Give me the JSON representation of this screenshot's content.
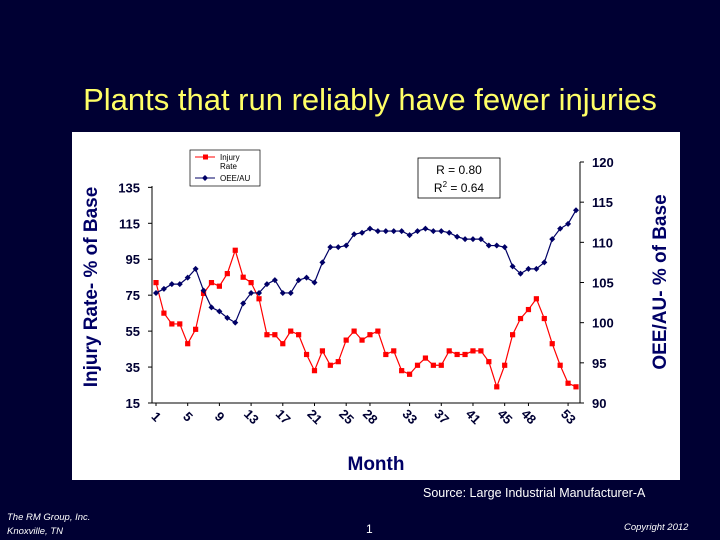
{
  "slide": {
    "title": "Plants that run reliably have fewer injuries",
    "source": "Source: Large Industrial Manufacturer-A",
    "footer_company": "The RM Group, Inc.",
    "footer_location": "Knoxville, TN",
    "page_number": "1",
    "copyright": "Copyright 2012"
  },
  "colors": {
    "background": "#000033",
    "title": "#ffff66",
    "injury_series": "#ff0000",
    "oee_series": "#000066"
  },
  "chart_data": {
    "type": "line",
    "xlabel": "Month",
    "ylabel_left": "Injury Rate- % of Base",
    "ylabel_right": "OEE/AU- % of Base",
    "x_tick_labels": [
      "1",
      "5",
      "9",
      "13",
      "17",
      "21",
      "25",
      "28",
      "33",
      "37",
      "41",
      "45",
      "48",
      "53"
    ],
    "y_left_ticks": [
      15,
      35,
      55,
      75,
      95,
      115,
      135
    ],
    "y_left_range": [
      15,
      148
    ],
    "y_right_ticks": [
      90,
      95,
      100,
      105,
      110,
      115,
      120
    ],
    "y_right_range": [
      90,
      120
    ],
    "grid": false,
    "legend_position": "top-left",
    "annotation": {
      "r": "R = 0.80",
      "r2_prefix": "R",
      "r2_exp": "2",
      "r2_suffix": " = 0.64"
    },
    "series": [
      {
        "name": "Injury Rate",
        "axis": "left",
        "marker": "square",
        "color": "#ff0000",
        "values": [
          82,
          65,
          59,
          59,
          48,
          56,
          76,
          82,
          80,
          87,
          100,
          85,
          82,
          73,
          53,
          53,
          48,
          55,
          53,
          42,
          33,
          44,
          36,
          38,
          50,
          55,
          50,
          53,
          55,
          42,
          44,
          33,
          31,
          36,
          40,
          36,
          36,
          44,
          42,
          42,
          44,
          44,
          38,
          24,
          36,
          53,
          62,
          67,
          73,
          62,
          48,
          36,
          26,
          24
        ]
      },
      {
        "name": "OEE/AU",
        "axis": "right",
        "marker": "diamond",
        "color": "#000066",
        "values": [
          103.7,
          104.2,
          104.8,
          104.8,
          105.6,
          106.7,
          104.0,
          101.9,
          101.4,
          100.6,
          100.0,
          102.4,
          103.7,
          103.7,
          104.8,
          105.3,
          103.7,
          103.7,
          105.3,
          105.6,
          105.0,
          107.5,
          109.4,
          109.4,
          109.6,
          111.0,
          111.2,
          111.7,
          111.4,
          111.4,
          111.4,
          111.4,
          110.9,
          111.4,
          111.7,
          111.4,
          111.4,
          111.2,
          110.7,
          110.4,
          110.4,
          110.4,
          109.6,
          109.6,
          109.4,
          107.0,
          106.1,
          106.7,
          106.7,
          107.5,
          110.4,
          111.7,
          112.3,
          114.0
        ]
      }
    ]
  }
}
